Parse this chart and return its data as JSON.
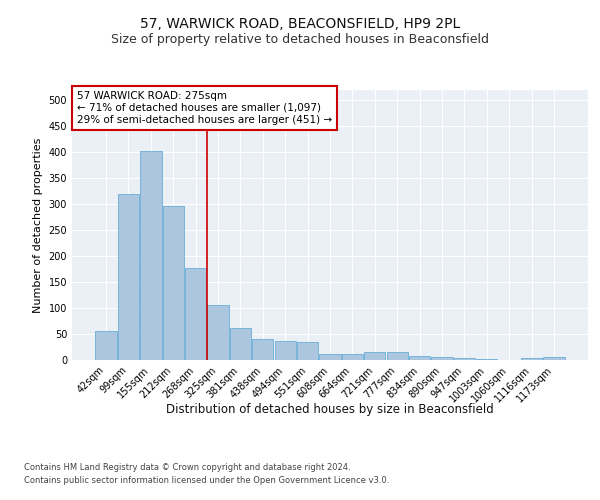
{
  "title1": "57, WARWICK ROAD, BEACONSFIELD, HP9 2PL",
  "title2": "Size of property relative to detached houses in Beaconsfield",
  "xlabel": "Distribution of detached houses by size in Beaconsfield",
  "ylabel": "Number of detached properties",
  "categories": [
    "42sqm",
    "99sqm",
    "155sqm",
    "212sqm",
    "268sqm",
    "325sqm",
    "381sqm",
    "438sqm",
    "494sqm",
    "551sqm",
    "608sqm",
    "664sqm",
    "721sqm",
    "777sqm",
    "834sqm",
    "890sqm",
    "947sqm",
    "1003sqm",
    "1060sqm",
    "1116sqm",
    "1173sqm"
  ],
  "values": [
    55,
    320,
    402,
    297,
    178,
    106,
    62,
    40,
    36,
    35,
    11,
    11,
    15,
    15,
    8,
    5,
    4,
    1,
    0,
    3,
    5
  ],
  "bar_color": "#adc6e0",
  "bar_edge_color": "#6aaed6",
  "annotation_text": "57 WARWICK ROAD: 275sqm\n← 71% of detached houses are smaller (1,097)\n29% of semi-detached houses are larger (451) →",
  "annotation_box_color": "#ffffff",
  "annotation_box_edge_color": "#cc0000",
  "vline_color": "#cc0000",
  "footer1": "Contains HM Land Registry data © Crown copyright and database right 2024.",
  "footer2": "Contains public sector information licensed under the Open Government Licence v3.0.",
  "ylim": [
    0,
    520
  ],
  "yticks": [
    0,
    50,
    100,
    150,
    200,
    250,
    300,
    350,
    400,
    450,
    500
  ],
  "bg_color": "#eaf0f6",
  "grid_color": "#ffffff",
  "title1_fontsize": 10,
  "title2_fontsize": 9,
  "tick_fontsize": 7,
  "ylabel_fontsize": 8,
  "xlabel_fontsize": 8.5,
  "footer_fontsize": 6,
  "ann_fontsize": 7.5
}
